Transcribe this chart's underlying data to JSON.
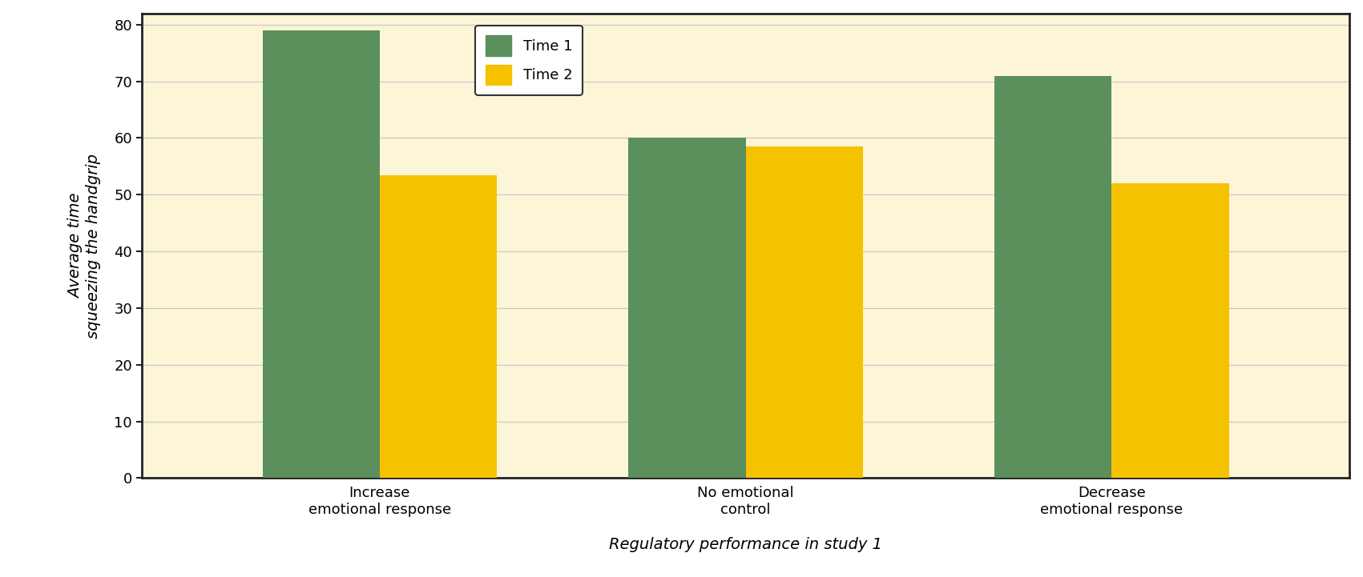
{
  "categories": [
    "Increase\nemotional response",
    "No emotional\ncontrol",
    "Decrease\nemotional response"
  ],
  "time1_values": [
    79,
    60,
    71
  ],
  "time2_values": [
    53.5,
    58.5,
    52
  ],
  "time1_color": "#5b8f5b",
  "time2_color": "#f5c200",
  "background_color": "#ffffff",
  "plot_bg_color": "#fdf5d8",
  "ylabel": "Average time\nsqueezing the handgrip",
  "xlabel": "Regulatory performance in study 1",
  "ylim": [
    0,
    82
  ],
  "yticks": [
    0,
    10,
    20,
    30,
    40,
    50,
    60,
    70,
    80
  ],
  "legend_labels": [
    "Time 1",
    "Time 2"
  ],
  "bar_width": 0.32,
  "tick_fontsize": 13,
  "label_fontsize": 14,
  "legend_fontsize": 13,
  "grid_color": "#c8c8d0",
  "spine_color": "#222222"
}
